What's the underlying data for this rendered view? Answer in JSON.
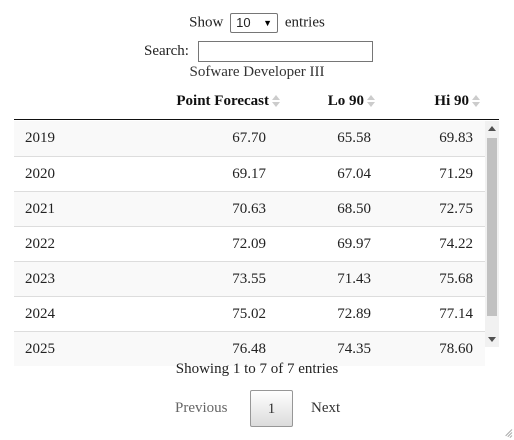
{
  "controls": {
    "show_label": "Show",
    "length_value": "10",
    "entries_label": "entries",
    "search_label": "Search:",
    "search_value": ""
  },
  "table": {
    "caption": "Sofware Developer III",
    "columns": [
      "Point Forecast",
      "Lo 90",
      "Hi 90"
    ],
    "rows": [
      {
        "year": "2019",
        "pf": "67.70",
        "lo": "65.58",
        "hi": "69.83"
      },
      {
        "year": "2020",
        "pf": "69.17",
        "lo": "67.04",
        "hi": "71.29"
      },
      {
        "year": "2021",
        "pf": "70.63",
        "lo": "68.50",
        "hi": "72.75"
      },
      {
        "year": "2022",
        "pf": "72.09",
        "lo": "69.97",
        "hi": "74.22"
      },
      {
        "year": "2023",
        "pf": "73.55",
        "lo": "71.43",
        "hi": "75.68"
      },
      {
        "year": "2024",
        "pf": "75.02",
        "lo": "72.89",
        "hi": "77.14"
      },
      {
        "year": "2025",
        "pf": "76.48",
        "lo": "74.35",
        "hi": "78.60"
      }
    ]
  },
  "info": "Showing 1 to 7 of 7 entries",
  "pagination": {
    "previous": "Previous",
    "current": "1",
    "next": "Next"
  }
}
